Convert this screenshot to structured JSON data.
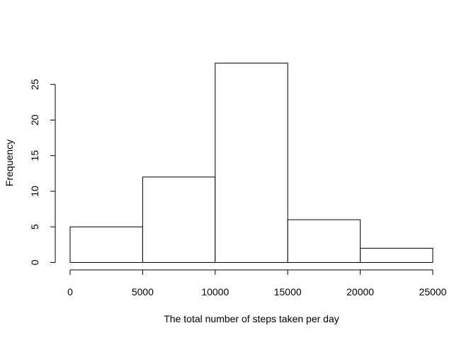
{
  "chart_data": {
    "type": "bar",
    "subtype": "histogram",
    "title": "",
    "xlabel": "The total number of steps taken per day",
    "ylabel": "Frequency",
    "bins": [
      {
        "from": 0,
        "to": 5000,
        "count": 5
      },
      {
        "from": 5000,
        "to": 10000,
        "count": 12
      },
      {
        "from": 10000,
        "to": 15000,
        "count": 28
      },
      {
        "from": 15000,
        "to": 20000,
        "count": 6
      },
      {
        "from": 20000,
        "to": 25000,
        "count": 2
      }
    ],
    "xlim": [
      0,
      25000
    ],
    "ylim": [
      0,
      28
    ],
    "xticks": [
      0,
      5000,
      10000,
      15000,
      20000,
      25000
    ],
    "yticks": [
      0,
      5,
      10,
      15,
      20,
      25
    ],
    "grid": false,
    "legend": "none",
    "colors": {
      "bar_fill": "#ffffff",
      "bar_stroke": "#000000",
      "axis": "#000000"
    }
  }
}
